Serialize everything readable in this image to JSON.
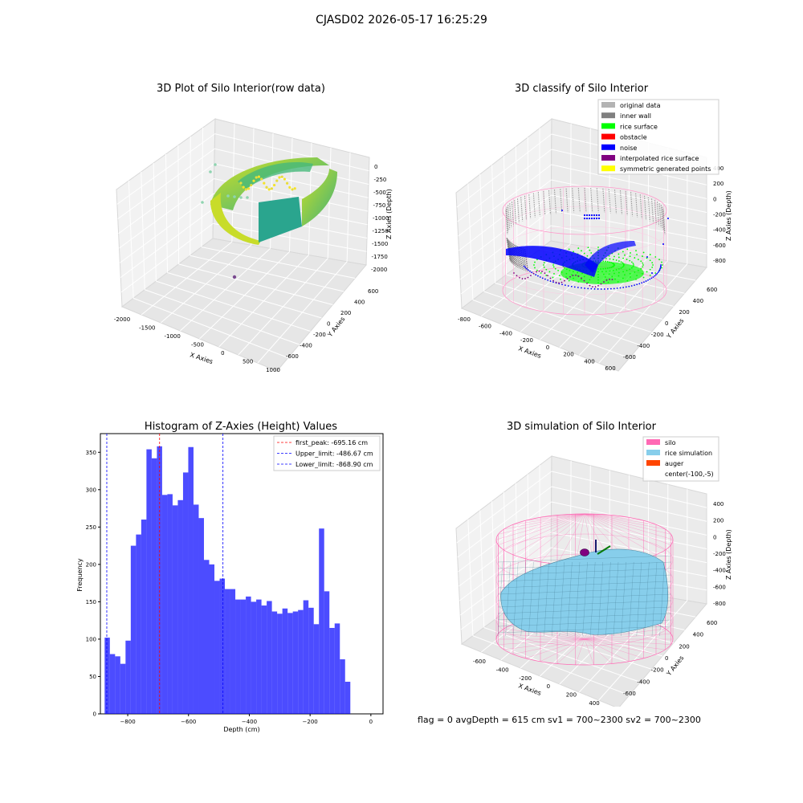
{
  "figure": {
    "suptitle": "CJASD02 2026-05-17 16:25:29",
    "status_line": "flag = 0     avgDepth = 615 cm  sv1 = 700~2300  sv2 = 700~2300"
  },
  "panels": {
    "raw": {
      "title": "3D Plot of Silo Interior(row data)",
      "xlabel": "X Axies",
      "ylabel": "Y Axies",
      "zlabel": "Z Axies (Depth)",
      "xticks": [
        "-2000",
        "-1500",
        "-1000",
        "-500",
        "0",
        "500",
        "1000"
      ],
      "yticks": [
        "-600",
        "-400",
        "-200",
        "0",
        "200",
        "400",
        "600"
      ],
      "zticks": [
        "0",
        "-250",
        "-500",
        "-750",
        "-1000",
        "-1250",
        "-1500",
        "-1750",
        "-2000"
      ]
    },
    "classify": {
      "title": "3D classify of Silo Interior",
      "xlabel": "X Axies",
      "ylabel": "Y Axies",
      "zlabel": "Z Axies (Depth)",
      "xticks": [
        "-800",
        "-600",
        "-400",
        "-200",
        "0",
        "200",
        "400",
        "600"
      ],
      "yticks": [
        "-600",
        "-400",
        "-200",
        "0",
        "200",
        "400",
        "600"
      ],
      "zticks": [
        "400",
        "200",
        "0",
        "-200",
        "-400",
        "-600",
        "-800"
      ],
      "legend": [
        {
          "label": "original data",
          "color": "#b3b3b3"
        },
        {
          "label": "inner wall",
          "color": "#808080"
        },
        {
          "label": "rice surface",
          "color": "#00ff00"
        },
        {
          "label": "obstacle",
          "color": "#ff0000"
        },
        {
          "label": "noise",
          "color": "#0000ff"
        },
        {
          "label": "interpolated rice surface",
          "color": "#800080"
        },
        {
          "label": "symmetric generated points",
          "color": "#ffff00"
        }
      ]
    },
    "simulation": {
      "title": "3D simulation of Silo Interior",
      "xlabel": "X Axies",
      "ylabel": "Y Axies",
      "zlabel": "Z Axies (Depth)",
      "xticks": [
        "-600",
        "-400",
        "-200",
        "0",
        "200",
        "400"
      ],
      "yticks": [
        "-600",
        "-400",
        "-200",
        "0",
        "200",
        "400",
        "600"
      ],
      "zticks": [
        "400",
        "200",
        "0",
        "-200",
        "-400",
        "-600",
        "-800"
      ],
      "legend": [
        {
          "label": "silo",
          "color": "#ff69b4"
        },
        {
          "label": "rice simulation",
          "color": "#87ceeb"
        },
        {
          "label": "auger",
          "color": "#ff4500"
        },
        {
          "label": "center(-100,-5)",
          "color": ""
        }
      ]
    }
  },
  "chart_data": {
    "type": "bar",
    "title": "Histogram of Z-Axies (Height) Values",
    "xlabel": "Depth (cm)",
    "ylabel": "Frequency",
    "xlim": [
      -890,
      40
    ],
    "ylim": [
      0,
      375
    ],
    "xticks": [
      -800,
      -600,
      -400,
      -200,
      0
    ],
    "yticks": [
      0,
      50,
      100,
      150,
      200,
      250,
      300,
      350
    ],
    "bin_start": -876,
    "bin_width": 17.2,
    "values": [
      102,
      80,
      77,
      67,
      98,
      225,
      240,
      260,
      354,
      342,
      358,
      293,
      294,
      279,
      286,
      323,
      357,
      280,
      262,
      206,
      200,
      178,
      181,
      167,
      167,
      153,
      153,
      157,
      150,
      153,
      145,
      151,
      137,
      134,
      141,
      135,
      137,
      139,
      152,
      142,
      120,
      248,
      164,
      115,
      121,
      73,
      43
    ],
    "color": "#0000ff",
    "vlines": [
      {
        "label": "first_peak: -695.16 cm",
        "x": -695.16,
        "color": "#ff0000"
      },
      {
        "label": "Upper_limit: -486.67 cm",
        "x": -486.67,
        "color": "#0000ff"
      },
      {
        "label": "Lower_limit: -868.90 cm",
        "x": -868.9,
        "color": "#0000ff"
      }
    ]
  }
}
